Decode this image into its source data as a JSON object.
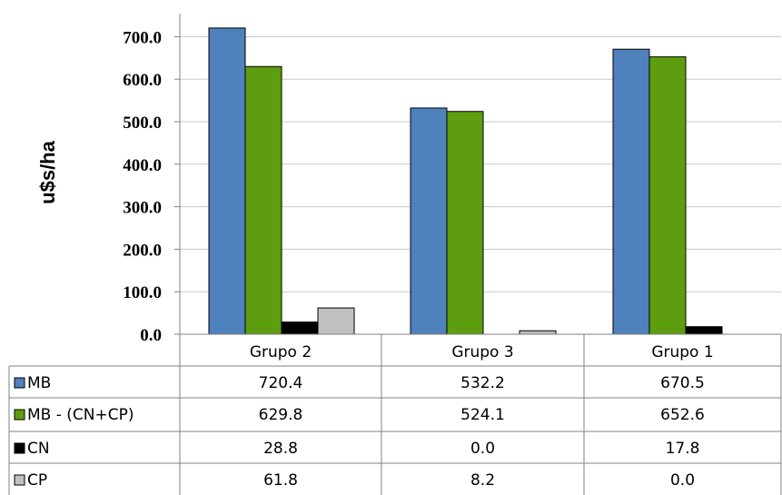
{
  "chart_data": {
    "type": "bar",
    "ylabel": "u$s/ha",
    "ylim": [
      0,
      750
    ],
    "yticks": [
      "0.0",
      "100.0",
      "200.0",
      "300.0",
      "400.0",
      "500.0",
      "600.0",
      "700.0"
    ],
    "categories": [
      "Grupo 2",
      "Grupo 3",
      "Grupo 1"
    ],
    "legend_placement": "data-table",
    "series": [
      {
        "name": "MB",
        "color": "#4f81bd",
        "values": [
          720.4,
          532.2,
          670.5
        ],
        "labels": [
          "720.4",
          "532.2",
          "670.5"
        ]
      },
      {
        "name": "MB - (CN+CP)",
        "color": "#5e9d0f",
        "values": [
          629.8,
          524.1,
          652.6
        ],
        "labels": [
          "629.8",
          "524.1",
          "652.6"
        ]
      },
      {
        "name": "CN",
        "color": "#000000",
        "values": [
          28.8,
          0.0,
          17.8
        ],
        "labels": [
          "28.8",
          "0.0",
          "17.8"
        ]
      },
      {
        "name": "CP",
        "color": "#c0c0c0",
        "values": [
          61.8,
          8.2,
          0.0
        ],
        "labels": [
          "61.8",
          "8.2",
          "0.0"
        ]
      }
    ]
  }
}
